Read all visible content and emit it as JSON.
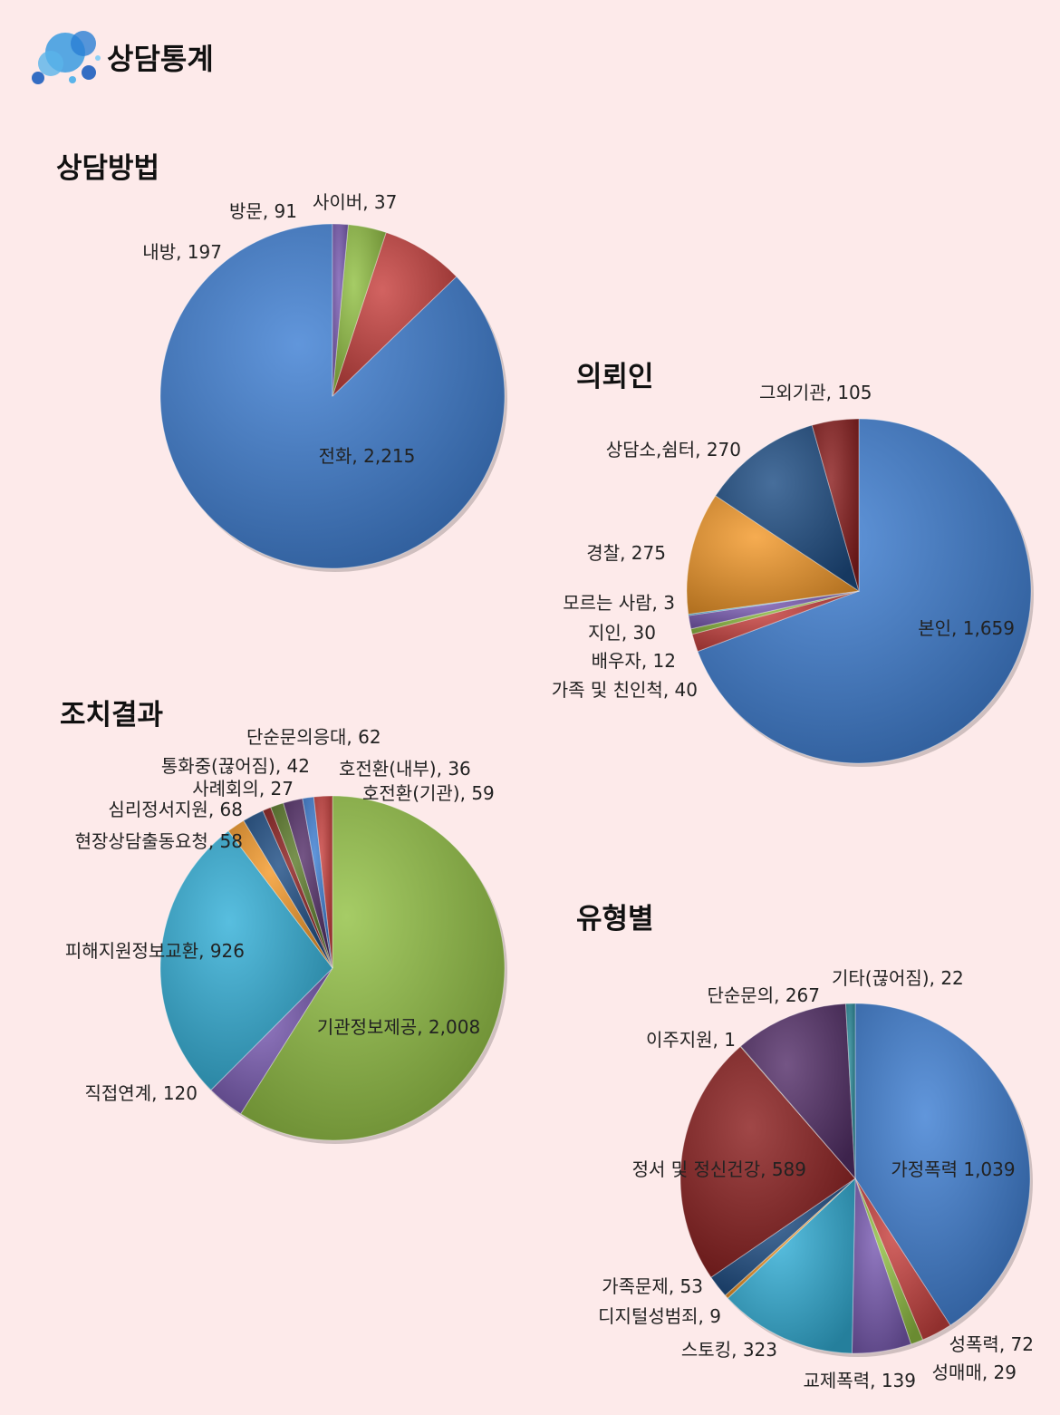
{
  "page": {
    "title": "상담통계"
  },
  "colors": {
    "background": "#fdeaea",
    "blue": "#3e7fd3",
    "red": "#c8413e",
    "green": "#93c144",
    "purple": "#7a5bb3",
    "orange": "#f49a2b",
    "navy": "#1f4e85",
    "darkred": "#8b1e1e",
    "cyan": "#33b0d8",
    "plum": "#55306a",
    "teal": "#2a8a9a"
  },
  "chart_data": [
    {
      "id": "method",
      "type": "pie",
      "title": "상담방법",
      "slices": [
        {
          "label": "전화",
          "value": 2215,
          "text": "전화, 2,215",
          "color": "#3e7fd3"
        },
        {
          "label": "내방",
          "value": 197,
          "text": "내방, 197",
          "color": "#c8413e"
        },
        {
          "label": "방문",
          "value": 91,
          "text": "방문, 91",
          "color": "#93c144"
        },
        {
          "label": "사이버",
          "value": 37,
          "text": "사이버, 37",
          "color": "#7a5bb3"
        }
      ]
    },
    {
      "id": "requester",
      "type": "pie",
      "title": "의뢰인",
      "slices": [
        {
          "label": "본인",
          "value": 1659,
          "text": "본인, 1,659",
          "color": "#3e7fd3"
        },
        {
          "label": "가족 및 친인척",
          "value": 40,
          "text": "가족 및 친인척, 40",
          "color": "#c8413e"
        },
        {
          "label": "배우자",
          "value": 12,
          "text": "배우자, 12",
          "color": "#93c144"
        },
        {
          "label": "지인",
          "value": 30,
          "text": "지인, 30",
          "color": "#7a5bb3"
        },
        {
          "label": "모르는 사람",
          "value": 3,
          "text": "모르는 사람, 3",
          "color": "#33b0d8"
        },
        {
          "label": "경찰",
          "value": 275,
          "text": "경찰, 275",
          "color": "#f49a2b"
        },
        {
          "label": "상담소,쉼터",
          "value": 270,
          "text": "상담소,쉼터, 270",
          "color": "#1f4e85"
        },
        {
          "label": "그외기관",
          "value": 105,
          "text": "그외기관, 105",
          "color": "#8b1e1e"
        }
      ]
    },
    {
      "id": "result",
      "type": "pie",
      "title": "조치결과",
      "slices": [
        {
          "label": "기관정보제공",
          "value": 2008,
          "text": "기관정보제공, 2,008",
          "color": "#93c144"
        },
        {
          "label": "직접연계",
          "value": 120,
          "text": "직접연계, 120",
          "color": "#7a5bb3"
        },
        {
          "label": "피해지원정보교환",
          "value": 926,
          "text": "피해지원정보교환, 926",
          "color": "#33b0d8"
        },
        {
          "label": "현장상담출동요청",
          "value": 58,
          "text": "현장상담출동요청, 58",
          "color": "#f49a2b"
        },
        {
          "label": "심리정서지원",
          "value": 68,
          "text": "심리정서지원, 68",
          "color": "#1f4e85"
        },
        {
          "label": "사례회의",
          "value": 27,
          "text": "사례회의, 27",
          "color": "#8b1e1e"
        },
        {
          "label": "통화중(끊어짐)",
          "value": 42,
          "text": "통화중(끊어짐), 42",
          "color": "#5b7a2a"
        },
        {
          "label": "단순문의응대",
          "value": 62,
          "text": "단순문의응대, 62",
          "color": "#55306a"
        },
        {
          "label": "호전환(내부)",
          "value": 36,
          "text": "호전환(내부), 36",
          "color": "#3e7fd3"
        },
        {
          "label": "호전환(기관)",
          "value": 59,
          "text": "호전환(기관), 59",
          "color": "#c8413e"
        }
      ]
    },
    {
      "id": "type",
      "type": "pie",
      "title": "유형별",
      "slices": [
        {
          "label": "가정폭력",
          "value": 1039,
          "text": "가정폭력 1,039",
          "color": "#3e7fd3"
        },
        {
          "label": "성폭력",
          "value": 72,
          "text": "성폭력, 72",
          "color": "#c8413e"
        },
        {
          "label": "성매매",
          "value": 29,
          "text": "성매매, 29",
          "color": "#93c144"
        },
        {
          "label": "교제폭력",
          "value": 139,
          "text": "교제폭력, 139",
          "color": "#7a5bb3"
        },
        {
          "label": "스토킹",
          "value": 323,
          "text": "스토킹, 323",
          "color": "#33b0d8"
        },
        {
          "label": "디지털성범죄",
          "value": 9,
          "text": "디지털성범죄, 9",
          "color": "#f49a2b"
        },
        {
          "label": "가족문제",
          "value": 53,
          "text": "가족문제, 53",
          "color": "#1f4e85"
        },
        {
          "label": "정서 및 정신건강",
          "value": 589,
          "text": "정서 및 정신건강, 589",
          "color": "#8b1e1e"
        },
        {
          "label": "이주지원",
          "value": 1,
          "text": "이주지원, 1",
          "color": "#5b7a2a"
        },
        {
          "label": "단순문의",
          "value": 267,
          "text": "단순문의, 267",
          "color": "#55306a"
        },
        {
          "label": "기타(끊어짐)",
          "value": 22,
          "text": "기타(끊어짐), 22",
          "color": "#2a8a9a"
        }
      ]
    }
  ]
}
